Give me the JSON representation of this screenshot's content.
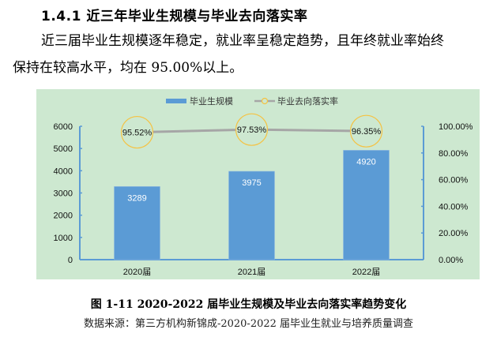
{
  "section": {
    "heading": "1.4.1 近三年毕业生规模与毕业去向落实率",
    "paragraph_line1": "近三届毕业生规模逐年稳定，就业率呈稳定趋势，且年终就业率始终",
    "paragraph_line2": "保持在较高水平，均在  95.00%以上。"
  },
  "figure": {
    "caption": "图 1-11    2020-2022 届毕业生规模及毕业去向落实率趋势变化",
    "source": "数据来源：第三方机构新锦成-2020-2022 届毕业生就业与培养质量调查"
  },
  "colors": {
    "background": "#cde8d0",
    "bar": "#5b9bd5",
    "line": "#a6a6a6",
    "marker_ring": "#f5c242",
    "axis": "#5b9bd5"
  },
  "chart_data": {
    "type": "bar+line",
    "title": "",
    "categories": [
      "2020届",
      "2021届",
      "2022届"
    ],
    "legend_position": "top",
    "grid": false,
    "series": [
      {
        "name": "毕业生规模",
        "type": "bar",
        "axis": "left",
        "values": [
          3289,
          3975,
          4920
        ],
        "labels": [
          "3289",
          "3975",
          "4920"
        ]
      },
      {
        "name": "毕业去向落实率",
        "type": "line",
        "axis": "right",
        "values": [
          95.52,
          97.53,
          96.35
        ],
        "labels": [
          "95.52%",
          "97.53%",
          "96.35%"
        ]
      }
    ],
    "left_axis": {
      "ylim": [
        0,
        6000
      ],
      "ticks": [
        "0",
        "1000",
        "2000",
        "3000",
        "4000",
        "5000",
        "6000"
      ]
    },
    "right_axis": {
      "ylim": [
        0,
        100
      ],
      "ticks": [
        "0.00%",
        "20.00%",
        "40.00%",
        "60.00%",
        "80.00%",
        "100.00%"
      ]
    },
    "xlabel": "",
    "ylabel": ""
  }
}
